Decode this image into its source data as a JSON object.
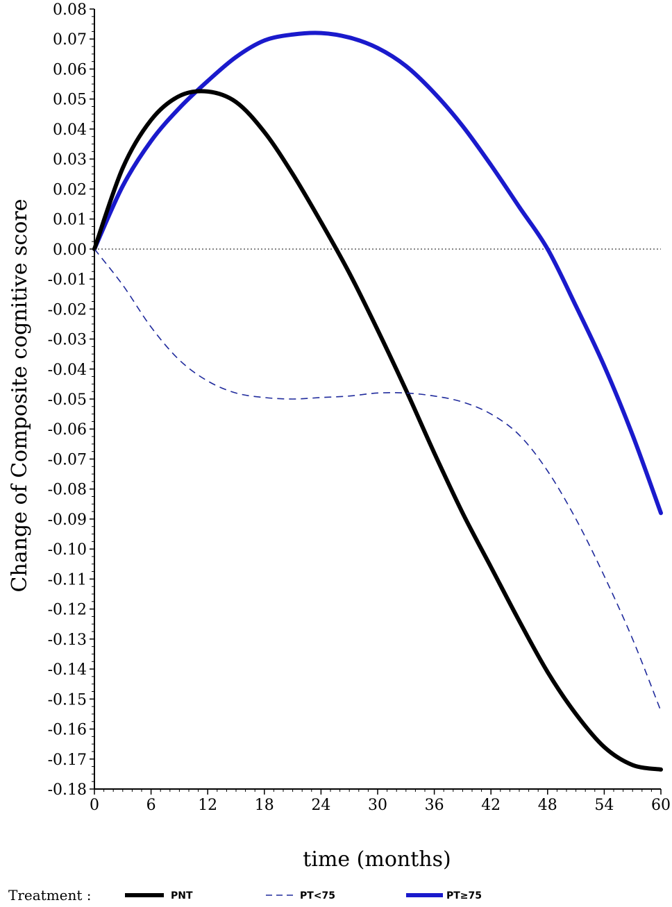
{
  "chart_data": {
    "type": "line",
    "title": "",
    "xlabel": "time (months)",
    "ylabel": "Change of Composite cognitive score",
    "xlim": [
      0,
      60
    ],
    "ylim": [
      -0.18,
      0.08
    ],
    "xticks": [
      0,
      6,
      12,
      18,
      24,
      30,
      36,
      42,
      48,
      54,
      60
    ],
    "xtick_labels": [
      "0",
      "6",
      "12",
      "18",
      "24",
      "30",
      "36",
      "42",
      "48",
      "54",
      "60"
    ],
    "yticks": [
      0.08,
      0.07,
      0.06,
      0.05,
      0.04,
      0.03,
      0.02,
      0.01,
      0.0,
      -0.01,
      -0.02,
      -0.03,
      -0.04,
      -0.05,
      -0.06,
      -0.07,
      -0.08,
      -0.09,
      -0.1,
      -0.11,
      -0.12,
      -0.13,
      -0.14,
      -0.15,
      -0.16,
      -0.17,
      -0.18
    ],
    "ytick_labels": [
      "0.08",
      "0.07",
      "0.06",
      "0.05",
      "0.04",
      "0.03",
      "0.02",
      "0.01",
      "0.00",
      "-0.01",
      "-0.02",
      "-0.03",
      "-0.04",
      "-0.05",
      "-0.06",
      "-0.07",
      "-0.08",
      "-0.09",
      "-0.10",
      "-0.11",
      "-0.12",
      "-0.13",
      "-0.14",
      "-0.15",
      "-0.16",
      "-0.17",
      "-0.18"
    ],
    "reference_line": {
      "y": 0.0,
      "style": "dotted",
      "color": "#808080"
    },
    "grid": false,
    "legend": {
      "title": "Treatment :",
      "position": "bottom"
    },
    "series": [
      {
        "name": "PNT",
        "color": "#000000",
        "style": "solid-thick",
        "x": [
          0,
          3,
          6,
          9,
          12,
          15,
          18,
          21,
          24,
          27,
          30,
          33,
          36,
          39,
          42,
          45,
          48,
          51,
          54,
          57,
          60
        ],
        "y": [
          0.0,
          0.027,
          0.043,
          0.051,
          0.0525,
          0.049,
          0.039,
          0.025,
          0.009,
          -0.008,
          -0.027,
          -0.047,
          -0.068,
          -0.088,
          -0.106,
          -0.124,
          -0.141,
          -0.155,
          -0.166,
          -0.172,
          -0.1735
        ]
      },
      {
        "name": "PT<75",
        "color": "#1f2a9c",
        "style": "dashed",
        "x": [
          0,
          3,
          6,
          9,
          12,
          15,
          18,
          21,
          24,
          27,
          30,
          33,
          36,
          39,
          42,
          45,
          48,
          51,
          54,
          57,
          60
        ],
        "y": [
          0.0,
          -0.012,
          -0.026,
          -0.037,
          -0.044,
          -0.048,
          -0.0495,
          -0.05,
          -0.0495,
          -0.049,
          -0.048,
          -0.048,
          -0.049,
          -0.051,
          -0.055,
          -0.062,
          -0.074,
          -0.09,
          -0.109,
          -0.13,
          -0.154
        ]
      },
      {
        "name": "PT≥75",
        "color": "#1a1acc",
        "style": "solid-thick",
        "x": [
          0,
          3,
          6,
          9,
          12,
          15,
          18,
          21,
          24,
          27,
          30,
          33,
          36,
          39,
          42,
          45,
          48,
          51,
          54,
          57,
          60
        ],
        "y": [
          0.0,
          0.021,
          0.036,
          0.047,
          0.056,
          0.064,
          0.0695,
          0.0715,
          0.072,
          0.0705,
          0.067,
          0.061,
          0.052,
          0.041,
          0.028,
          0.014,
          0.0,
          -0.019,
          -0.039,
          -0.062,
          -0.088
        ]
      }
    ]
  }
}
